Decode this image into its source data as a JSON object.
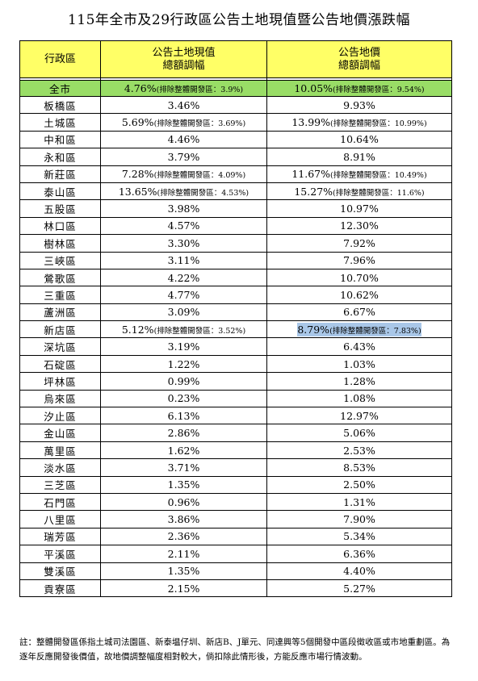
{
  "title": "115年全市及29行政區公告土地現值暨公告地價漲跌幅",
  "headers": {
    "district": "行政區",
    "land_value": [
      "公告土地現值",
      "總額調幅"
    ],
    "land_price": [
      "公告地價",
      "總額調幅"
    ]
  },
  "total": {
    "name": "全市",
    "land_value": "4.76%",
    "land_value_note": "(排除整體開發區：3.9%)",
    "land_price": "10.05%",
    "land_price_note": "(排除整體開發區：9.54%)"
  },
  "rows": [
    {
      "name": "板橋區",
      "lv": "3.46%",
      "lv_note": "",
      "lp": "9.93%",
      "lp_note": ""
    },
    {
      "name": "土城區",
      "lv": "5.69%",
      "lv_note": "(排除整體開發區：3.69%)",
      "lp": "13.99%",
      "lp_note": "(排除整體開發區：10.99%)"
    },
    {
      "name": "中和區",
      "lv": "4.46%",
      "lv_note": "",
      "lp": "10.64%",
      "lp_note": ""
    },
    {
      "name": "永和區",
      "lv": "3.79%",
      "lv_note": "",
      "lp": "8.91%",
      "lp_note": ""
    },
    {
      "name": "新莊區",
      "lv": "7.28%",
      "lv_note": "(排除整體開發區：4.09%)",
      "lp": "11.67%",
      "lp_note": "(排除整體開發區：10.49%)"
    },
    {
      "name": "泰山區",
      "lv": "13.65%",
      "lv_note": "(排除整體開發區：4.53%)",
      "lp": "15.27%",
      "lp_note": "(排除整體開發區：11.6%)"
    },
    {
      "name": "五股區",
      "lv": "3.98%",
      "lv_note": "",
      "lp": "10.97%",
      "lp_note": ""
    },
    {
      "name": "林口區",
      "lv": "4.57%",
      "lv_note": "",
      "lp": "12.30%",
      "lp_note": ""
    },
    {
      "name": "樹林區",
      "lv": "3.30%",
      "lv_note": "",
      "lp": "7.92%",
      "lp_note": ""
    },
    {
      "name": "三峽區",
      "lv": "3.11%",
      "lv_note": "",
      "lp": "7.96%",
      "lp_note": ""
    },
    {
      "name": "鶯歌區",
      "lv": "4.22%",
      "lv_note": "",
      "lp": "10.70%",
      "lp_note": ""
    },
    {
      "name": "三重區",
      "lv": "4.77%",
      "lv_note": "",
      "lp": "10.62%",
      "lp_note": ""
    },
    {
      "name": "蘆洲區",
      "lv": "3.09%",
      "lv_note": "",
      "lp": "6.67%",
      "lp_note": ""
    },
    {
      "name": "新店區",
      "lv": "5.12%",
      "lv_note": "(排除整體開發區：3.52%)",
      "lp": "8.79%",
      "lp_note": "(排除整體開發區：7.83%)",
      "lp_highlight": true
    },
    {
      "name": "深坑區",
      "lv": "3.19%",
      "lv_note": "",
      "lp": "6.43%",
      "lp_note": ""
    },
    {
      "name": "石碇區",
      "lv": "1.22%",
      "lv_note": "",
      "lp": "1.03%",
      "lp_note": ""
    },
    {
      "name": "坪林區",
      "lv": "0.99%",
      "lv_note": "",
      "lp": "1.28%",
      "lp_note": ""
    },
    {
      "name": "烏來區",
      "lv": "0.23%",
      "lv_note": "",
      "lp": "1.08%",
      "lp_note": ""
    },
    {
      "name": "汐止區",
      "lv": "6.13%",
      "lv_note": "",
      "lp": "12.97%",
      "lp_note": ""
    },
    {
      "name": "金山區",
      "lv": "2.86%",
      "lv_note": "",
      "lp": "5.06%",
      "lp_note": ""
    },
    {
      "name": "萬里區",
      "lv": "1.62%",
      "lv_note": "",
      "lp": "2.53%",
      "lp_note": ""
    },
    {
      "name": "淡水區",
      "lv": "3.71%",
      "lv_note": "",
      "lp": "8.53%",
      "lp_note": ""
    },
    {
      "name": "三芝區",
      "lv": "1.35%",
      "lv_note": "",
      "lp": "2.50%",
      "lp_note": ""
    },
    {
      "name": "石門區",
      "lv": "0.96%",
      "lv_note": "",
      "lp": "1.31%",
      "lp_note": ""
    },
    {
      "name": "八里區",
      "lv": "3.86%",
      "lv_note": "",
      "lp": "7.90%",
      "lp_note": ""
    },
    {
      "name": "瑞芳區",
      "lv": "2.36%",
      "lv_note": "",
      "lp": "5.34%",
      "lp_note": ""
    },
    {
      "name": "平溪區",
      "lv": "2.11%",
      "lv_note": "",
      "lp": "6.36%",
      "lp_note": ""
    },
    {
      "name": "雙溪區",
      "lv": "1.35%",
      "lv_note": "",
      "lp": "4.40%",
      "lp_note": ""
    },
    {
      "name": "貢寮區",
      "lv": "2.15%",
      "lv_note": "",
      "lp": "5.27%",
      "lp_note": ""
    }
  ],
  "note": "註：整體開發區係指土城司法園區、新泰塭仔圳、新店B、J單元、同達興等5個開發中區段徵收區或市地重劃區。為逐年反應開發後價值，故地價調整幅度相對較大，倘扣除此情形後，方能反應市場行情波動。",
  "colors": {
    "header_bg": "#ffff66",
    "total_bg": "#99dd66",
    "highlight": "#a9c7e8"
  }
}
